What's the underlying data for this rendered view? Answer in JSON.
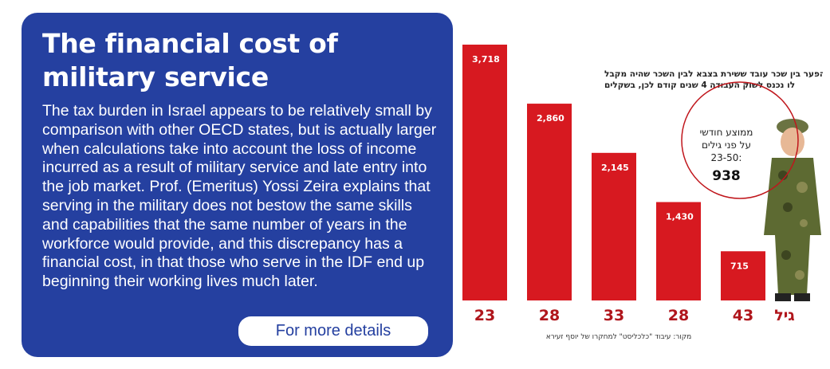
{
  "info": {
    "title": "The financial cost of military service",
    "body": "The tax burden in Israel appears to be relatively small by comparison with other OECD states, but is actually larger when calculations take into account the loss of income incurred as a result of military service and late entry into the job market. Prof. (Emeritus) Yossi Zeira explains that serving in the military does not bestow the same skills and capabilities that the same number of years in the workforce would provide, and this discrepancy has a financial cost, in that those who serve in the IDF end up beginning their working lives much later.",
    "button_label": "For more details"
  },
  "chart_data": {
    "type": "bar",
    "title_line1": "הפער בין שכר עובד ששירת בצבא לבין השכר שהיה מקבל",
    "title_line2": "לו נכנס לשוק העבודה 4 שנים קודם לכן, בשקלים",
    "categories": [
      "23",
      "28",
      "33",
      "28",
      "43"
    ],
    "values": [
      3718,
      2860,
      2145,
      1430,
      715
    ],
    "value_labels": [
      "3,718",
      "2,860",
      "2,145",
      "1,430",
      "715"
    ],
    "xlabel": "גיל",
    "ylim": [
      0,
      3718
    ],
    "bar_color": "#d71920",
    "label_color": "#b0161c",
    "annotation": {
      "line1": "ממוצע חודשי",
      "line2": "על פני גילים",
      "line3": "23-50:",
      "value": "938"
    },
    "source": "מקור: עיבוד \"כלכליסט\" למחקרו של יוסף זעירא"
  }
}
